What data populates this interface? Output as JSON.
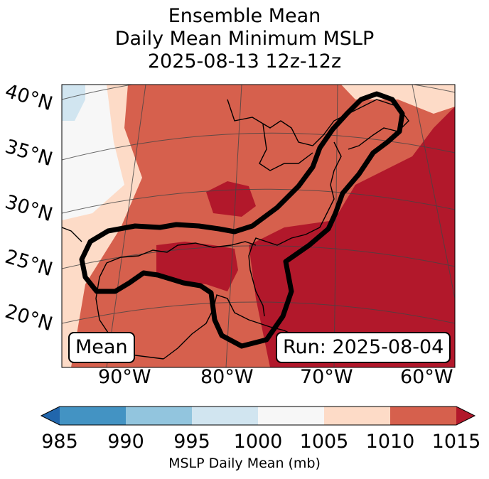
{
  "title": {
    "line1": "Ensemble Mean",
    "line2": "Daily Mean Minimum MSLP",
    "line3": "2025-08-13 12z-12z"
  },
  "map": {
    "lat_labels": [
      "40°N",
      "35°N",
      "30°N",
      "25°N",
      "20°N"
    ],
    "lon_labels": [
      "90°W",
      "80°W",
      "70°W",
      "60°W"
    ],
    "mean_label": "Mean",
    "run_label": "Run: 2025-08-04"
  },
  "colorbar": {
    "ticks": [
      "985",
      "990",
      "995",
      "1000",
      "1005",
      "1010",
      "1015"
    ],
    "label": "MSLP Daily Mean (mb)",
    "colors": [
      "#2166ac",
      "#4393c3",
      "#92c5de",
      "#d1e5f0",
      "#f7f7f7",
      "#fddbc7",
      "#d6604d",
      "#b2182b"
    ]
  }
}
